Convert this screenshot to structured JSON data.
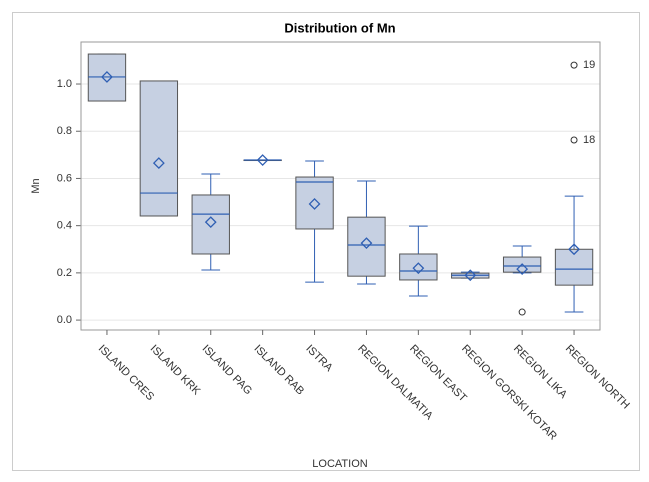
{
  "chart_data": {
    "type": "box",
    "title": "Distribution of Mn",
    "x_label": "LOCATION",
    "y_label": "Mn",
    "categories": [
      "ISLAND CRES",
      "ISLAND KRK",
      "ISLAND PAG",
      "ISLAND RAB",
      "ISTRA",
      "REGION DALMATIA",
      "REGION EAST",
      "REGION GORSKI KOTAR",
      "REGION LIKA",
      "REGION NORTH"
    ],
    "boxes": [
      {
        "min": 0.928,
        "q1": 0.928,
        "median": 1.03,
        "q3": 1.127,
        "max": 1.127,
        "mean": 1.03
      },
      {
        "min": 0.441,
        "q1": 0.441,
        "median": 0.538,
        "q3": 1.013,
        "max": 1.013,
        "mean": 0.665
      },
      {
        "min": 0.212,
        "q1": 0.28,
        "median": 0.449,
        "q3": 0.53,
        "max": 0.619,
        "mean": 0.415
      },
      {
        "min": 0.678,
        "q1": 0.678,
        "median": 0.678,
        "q3": 0.678,
        "max": 0.678,
        "mean": 0.678
      },
      {
        "min": 0.161,
        "q1": 0.386,
        "median": 0.585,
        "q3": 0.606,
        "max": 0.674,
        "mean": 0.492
      },
      {
        "min": 0.153,
        "q1": 0.186,
        "median": 0.318,
        "q3": 0.436,
        "max": 0.589,
        "mean": 0.326
      },
      {
        "min": 0.102,
        "q1": 0.17,
        "median": 0.208,
        "q3": 0.28,
        "max": 0.398,
        "mean": 0.22
      },
      {
        "min": 0.178,
        "q1": 0.178,
        "median": 0.19,
        "q3": 0.199,
        "max": 0.203,
        "mean": 0.19
      },
      {
        "min": 0.2,
        "q1": 0.203,
        "median": 0.229,
        "q3": 0.267,
        "max": 0.314,
        "mean": 0.216,
        "outliers": [
          {
            "value": 0.034
          }
        ]
      },
      {
        "min": 0.034,
        "q1": 0.148,
        "median": 0.216,
        "q3": 0.3,
        "max": 0.525,
        "mean": 0.3,
        "outliers": [
          {
            "value": 1.08,
            "id": "19"
          },
          {
            "value": 0.763,
            "id": "18"
          }
        ]
      }
    ],
    "box_color": "#c6d0e2",
    "line_color": "#2f5fb3",
    "ylim": [
      -0.042,
      1.178
    ],
    "yticks": [
      {
        "value": 0,
        "label": "0.0"
      },
      0.2,
      0.4,
      0.6,
      0.8,
      {
        "value": 1,
        "label": "1.0"
      }
    ],
    "grid": true
  }
}
